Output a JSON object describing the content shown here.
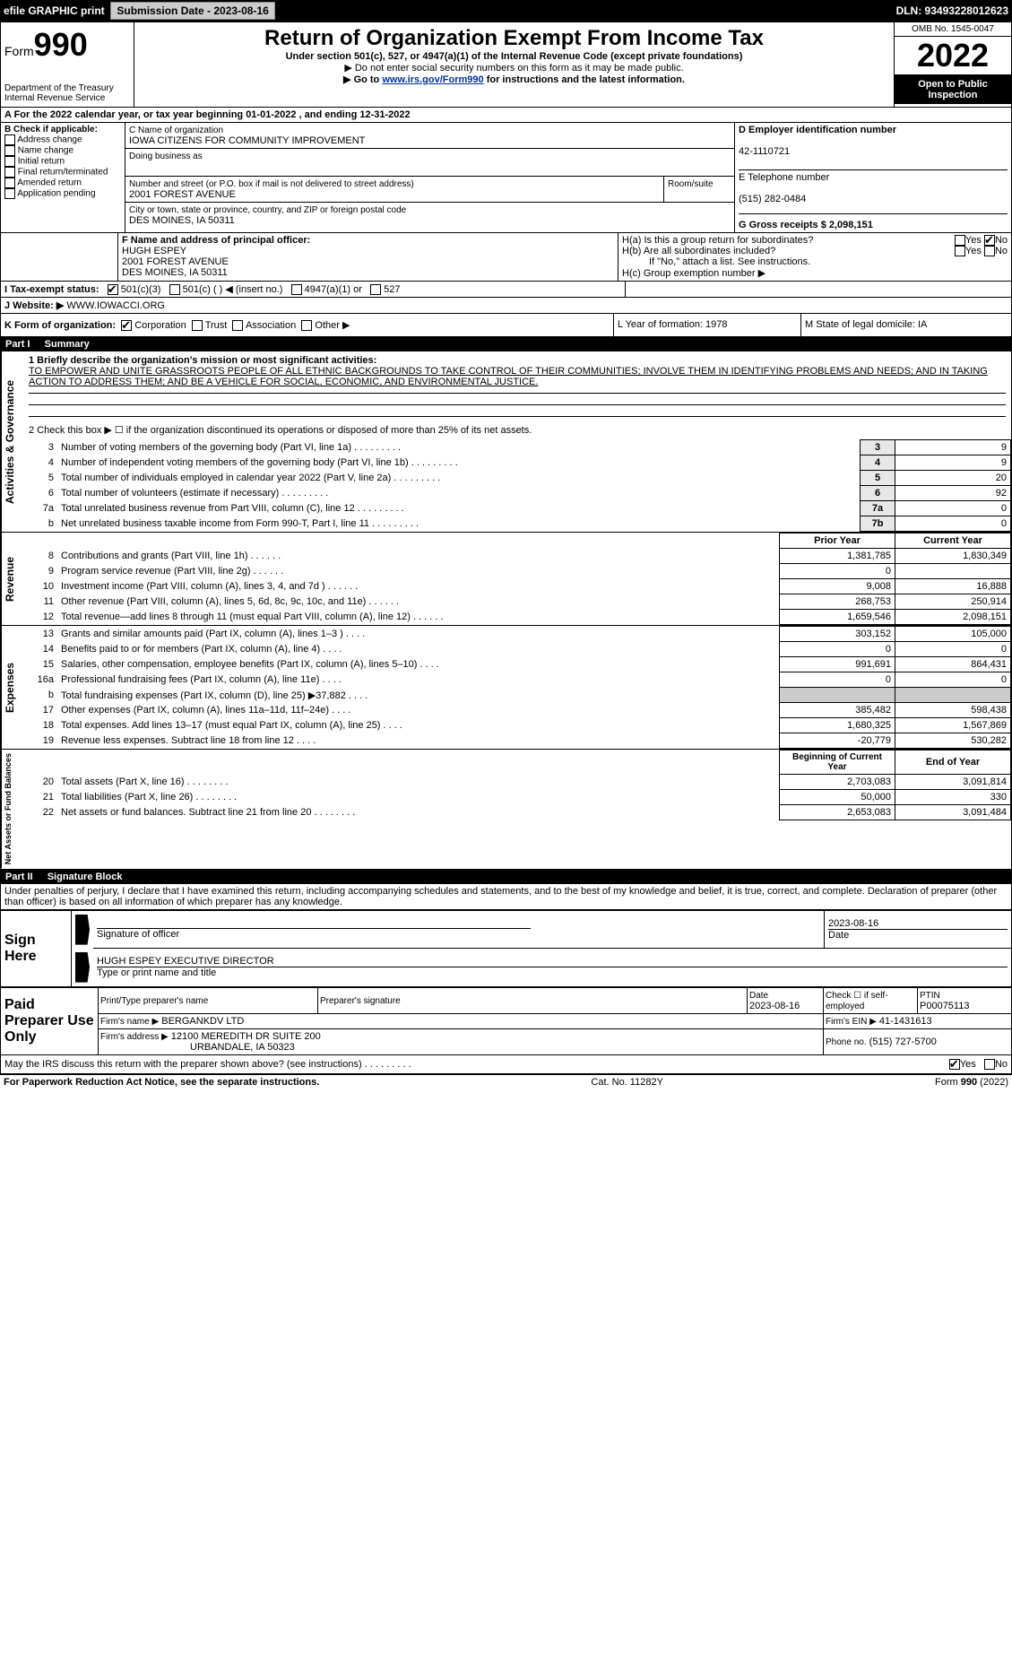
{
  "top_bar": {
    "efile_label": "efile GRAPHIC print",
    "submission_label": "Submission Date - 2023-08-16",
    "dln_label": "DLN: 93493228012623"
  },
  "header": {
    "form_label_pre": "Form",
    "form_number": "990",
    "dept1": "Department of the Treasury",
    "dept2": "Internal Revenue Service",
    "title": "Return of Organization Exempt From Income Tax",
    "sub1": "Under section 501(c), 527, or 4947(a)(1) of the Internal Revenue Code (except private foundations)",
    "sub2": "▶ Do not enter social security numbers on this form as it may be made public.",
    "sub3_pre": "▶ Go to ",
    "sub3_link": "www.irs.gov/Form990",
    "sub3_post": " for instructions and the latest information.",
    "omb": "OMB No. 1545-0047",
    "year": "2022",
    "open_pub": "Open to Public Inspection"
  },
  "line_a": "A For the 2022 calendar year, or tax year beginning 01-01-2022    , and ending 12-31-2022",
  "section_b": {
    "label": "B Check if applicable:",
    "opts": [
      "Address change",
      "Name change",
      "Initial return",
      "Final return/terminated",
      "Amended return",
      "Application pending"
    ]
  },
  "section_c": {
    "name_label": "C Name of organization",
    "name": "IOWA CITIZENS FOR COMMUNITY IMPROVEMENT",
    "dba_label": "Doing business as",
    "addr_label": "Number and street (or P.O. box if mail is not delivered to street address)",
    "room_label": "Room/suite",
    "addr": "2001 FOREST AVENUE",
    "city_label": "City or town, state or province, country, and ZIP or foreign postal code",
    "city": "DES MOINES, IA  50311"
  },
  "section_d": {
    "label": "D Employer identification number",
    "value": "42-1110721"
  },
  "section_e": {
    "label": "E Telephone number",
    "value": "(515) 282-0484"
  },
  "section_g": {
    "label": "G Gross receipts $ 2,098,151"
  },
  "section_f": {
    "label": "F Name and address of principal officer:",
    "line1": "HUGH ESPEY",
    "line2": "2001 FOREST AVENUE",
    "line3": "DES MOINES, IA  50311"
  },
  "section_h": {
    "a_label": "H(a)  Is this a group return for subordinates?",
    "b_label": "H(b)  Are all subordinates included?",
    "b_note": "If \"No,\" attach a list. See instructions.",
    "c_label": "H(c)  Group exemption number ▶",
    "yes": "Yes",
    "no": "No"
  },
  "section_i": {
    "label": "I Tax-exempt status:",
    "opt1": "501(c)(3)",
    "opt2": "501(c) (  ) ◀ (insert no.)",
    "opt3": "4947(a)(1) or",
    "opt4": "527"
  },
  "section_j": {
    "label": "J Website: ▶",
    "value": "WWW.IOWACCI.ORG"
  },
  "section_k": {
    "label": "K Form of organization:",
    "opts": [
      "Corporation",
      "Trust",
      "Association",
      "Other ▶"
    ]
  },
  "section_l": {
    "label": "L Year of formation: 1978"
  },
  "section_m": {
    "label": "M State of legal domicile: IA"
  },
  "part1": {
    "header": "Part I",
    "title": "Summary",
    "line1_label": "1 Briefly describe the organization's mission or most significant activities:",
    "line1_text": "TO EMPOWER AND UNITE GRASSROOTS PEOPLE OF ALL ETHNIC BACKGROUNDS TO TAKE CONTROL OF THEIR COMMUNITIES; INVOLVE THEM IN IDENTIFYING PROBLEMS AND NEEDS; AND IN TAKING ACTION TO ADDRESS THEM; AND BE A VEHICLE FOR SOCIAL, ECONOMIC, AND ENVIRONMENTAL JUSTICE.",
    "line2": "2   Check this box ▶ ☐  if the organization discontinued its operations or disposed of more than 25% of its net assets.",
    "gov_lines": [
      {
        "n": "3",
        "t": "Number of voting members of the governing body (Part VI, line 1a)",
        "box": "3",
        "v": "9"
      },
      {
        "n": "4",
        "t": "Number of independent voting members of the governing body (Part VI, line 1b)",
        "box": "4",
        "v": "9"
      },
      {
        "n": "5",
        "t": "Total number of individuals employed in calendar year 2022 (Part V, line 2a)",
        "box": "5",
        "v": "20"
      },
      {
        "n": "6",
        "t": "Total number of volunteers (estimate if necessary)",
        "box": "6",
        "v": "92"
      },
      {
        "n": "7a",
        "t": "Total unrelated business revenue from Part VIII, column (C), line 12",
        "box": "7a",
        "v": "0"
      },
      {
        "n": "b",
        "t": "Net unrelated business taxable income from Form 990-T, Part I, line 11",
        "box": "7b",
        "v": "0"
      }
    ],
    "prior_year": "Prior Year",
    "current_year": "Current Year",
    "rev_lines": [
      {
        "n": "8",
        "t": "Contributions and grants (Part VIII, line 1h)",
        "p": "1,381,785",
        "c": "1,830,349"
      },
      {
        "n": "9",
        "t": "Program service revenue (Part VIII, line 2g)",
        "p": "0",
        "c": ""
      },
      {
        "n": "10",
        "t": "Investment income (Part VIII, column (A), lines 3, 4, and 7d )",
        "p": "9,008",
        "c": "16,888"
      },
      {
        "n": "11",
        "t": "Other revenue (Part VIII, column (A), lines 5, 6d, 8c, 9c, 10c, and 11e)",
        "p": "268,753",
        "c": "250,914"
      },
      {
        "n": "12",
        "t": "Total revenue—add lines 8 through 11 (must equal Part VIII, column (A), line 12)",
        "p": "1,659,546",
        "c": "2,098,151"
      }
    ],
    "exp_lines": [
      {
        "n": "13",
        "t": "Grants and similar amounts paid (Part IX, column (A), lines 1–3 )",
        "p": "303,152",
        "c": "105,000"
      },
      {
        "n": "14",
        "t": "Benefits paid to or for members (Part IX, column (A), line 4)",
        "p": "0",
        "c": "0"
      },
      {
        "n": "15",
        "t": "Salaries, other compensation, employee benefits (Part IX, column (A), lines 5–10)",
        "p": "991,691",
        "c": "864,431"
      },
      {
        "n": "16a",
        "t": "Professional fundraising fees (Part IX, column (A), line 11e)",
        "p": "0",
        "c": "0"
      },
      {
        "n": "b",
        "t": "Total fundraising expenses (Part IX, column (D), line 25) ▶37,882",
        "p": "",
        "c": "",
        "shaded": true
      },
      {
        "n": "17",
        "t": "Other expenses (Part IX, column (A), lines 11a–11d, 11f–24e)",
        "p": "385,482",
        "c": "598,438"
      },
      {
        "n": "18",
        "t": "Total expenses. Add lines 13–17 (must equal Part IX, column (A), line 25)",
        "p": "1,680,325",
        "c": "1,567,869"
      },
      {
        "n": "19",
        "t": "Revenue less expenses. Subtract line 18 from line 12",
        "p": "-20,779",
        "c": "530,282"
      }
    ],
    "begin_year": "Beginning of Current Year",
    "end_year": "End of Year",
    "net_lines": [
      {
        "n": "20",
        "t": "Total assets (Part X, line 16)",
        "p": "2,703,083",
        "c": "3,091,814"
      },
      {
        "n": "21",
        "t": "Total liabilities (Part X, line 26)",
        "p": "50,000",
        "c": "330"
      },
      {
        "n": "22",
        "t": "Net assets or fund balances. Subtract line 21 from line 20",
        "p": "2,653,083",
        "c": "3,091,484"
      }
    ]
  },
  "vert_labels": {
    "gov": "Activities & Governance",
    "rev": "Revenue",
    "exp": "Expenses",
    "net": "Net Assets or Fund Balances"
  },
  "part2": {
    "header": "Part II",
    "title": "Signature Block",
    "decl": "Under penalties of perjury, I declare that I have examined this return, including accompanying schedules and statements, and to the best of my knowledge and belief, it is true, correct, and complete. Declaration of preparer (other than officer) is based on all information of which preparer has any knowledge."
  },
  "sign_here": {
    "label": "Sign Here",
    "sig_officer": "Signature of officer",
    "date": "Date",
    "date_val": "2023-08-16",
    "name_title": "HUGH ESPEY EXECUTIVE DIRECTOR",
    "type_label": "Type or print name and title"
  },
  "paid_prep": {
    "label": "Paid Preparer Use Only",
    "col1": "Print/Type preparer's name",
    "col2": "Preparer's signature",
    "col3": "Date",
    "date_val": "2023-08-16",
    "col4": "Check ☐ if self-employed",
    "col5": "PTIN",
    "ptin": "P00075113",
    "firm_name_label": "Firm's name    ▶",
    "firm_name": "BERGANKDV LTD",
    "firm_ein_label": "Firm's EIN ▶",
    "firm_ein": "41-1431613",
    "firm_addr_label": "Firm's address ▶",
    "firm_addr1": "12100 MEREDITH DR SUITE 200",
    "firm_addr2": "URBANDALE, IA  50323",
    "phone_label": "Phone no.",
    "phone": "(515) 727-5700"
  },
  "may_irs": {
    "text": "May the IRS discuss this return with the preparer shown above? (see instructions)",
    "yes": "Yes",
    "no": "No"
  },
  "footer": {
    "left": "For Paperwork Reduction Act Notice, see the separate instructions.",
    "mid": "Cat. No. 11282Y",
    "right": "Form 990 (2022)"
  }
}
